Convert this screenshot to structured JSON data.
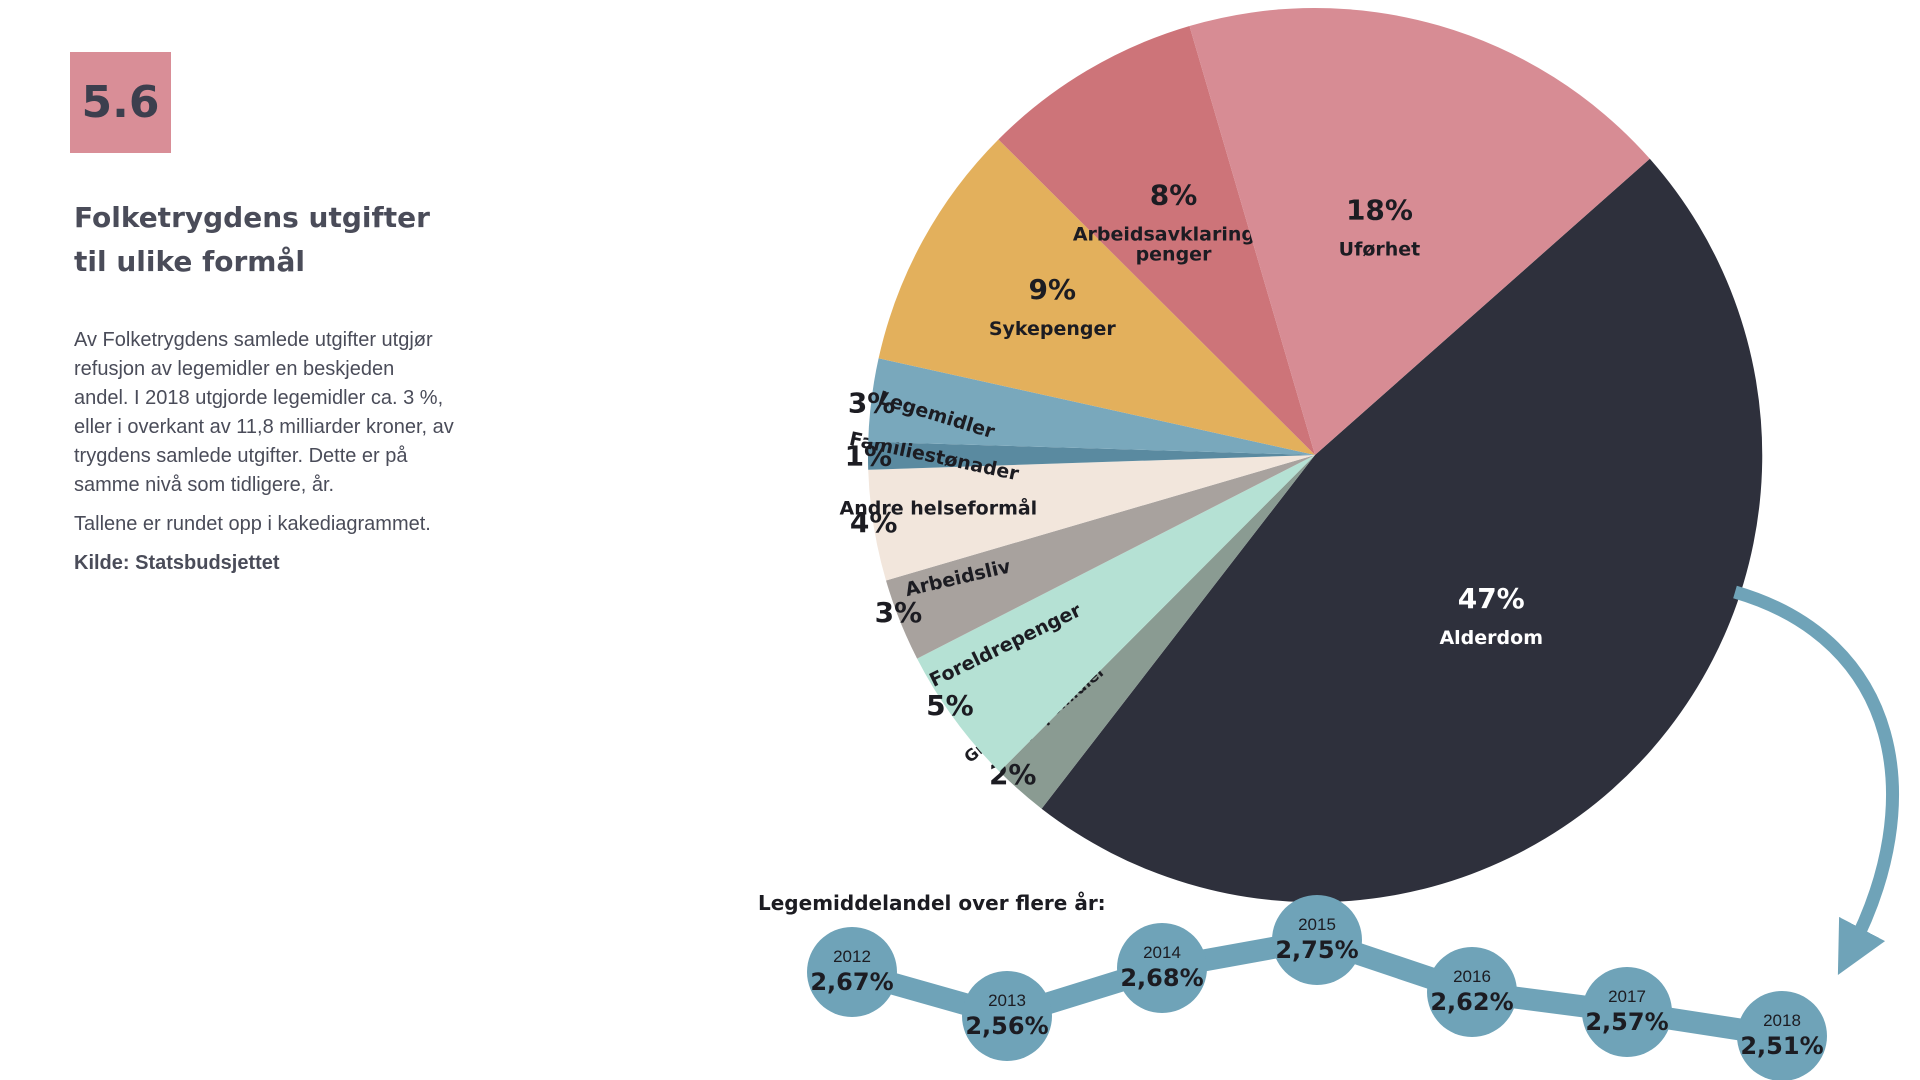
{
  "header": {
    "badge": "5.6",
    "title_lines": [
      "Folketrygdens utgifter",
      "til ulike formål"
    ]
  },
  "body": {
    "paragraph": "Av Folketrygdens samlede utgifter utgjør refusjon av legemidler en beskjeden andel. I 2018 utgjorde legemidler ca. 3 %, eller i overkant av 11,8 milliarder kroner, av trygdens samlede utgifter. Dette er på samme nivå som tidligere, år.",
    "note": "Tallene er rundet opp i kakediagrammet.",
    "source": "Kilde: Statsbudsjettet"
  },
  "chart_data": [
    {
      "type": "pie",
      "slices": [
        {
          "label": "Alderdom",
          "display_value": "47%",
          "value": 47,
          "color": "#2e303c",
          "text_color": "#ffffff"
        },
        {
          "label": "Grunn og hjelpestønad, hjelpemidler",
          "label_lines": [
            "Grunn og hjelpestønad,",
            "hjelpemidler"
          ],
          "display_value": "2%",
          "value": 2,
          "color": "#8a9b92",
          "text_color": "#1c1c22"
        },
        {
          "label": "Foreldrepenger",
          "display_value": "5%",
          "value": 5,
          "color": "#b5e1d4",
          "text_color": "#1c1c22"
        },
        {
          "label": "Arbeidsliv",
          "display_value": "3%",
          "value": 3,
          "color": "#a8a29e",
          "text_color": "#1c1c22"
        },
        {
          "label": "Andre helseformål",
          "display_value": "4%",
          "value": 4,
          "color": "#f2e6dc",
          "text_color": "#1c1c22"
        },
        {
          "label": "Familiestønader",
          "display_value": "1%",
          "value": 1,
          "color": "#5a8aa0",
          "text_color": "#1c1c22"
        },
        {
          "label": "Legemidler",
          "display_value": "3%",
          "value": 3,
          "color": "#79a8bc",
          "text_color": "#1c1c22"
        },
        {
          "label": "Sykepenger",
          "display_value": "9%",
          "value": 9,
          "color": "#e3b05c",
          "text_color": "#1c1c22"
        },
        {
          "label": "Arbeidsavklaringspenger",
          "label_lines": [
            "Arbeidsavklarings-",
            "penger"
          ],
          "display_value": "8%",
          "value": 8,
          "color": "#cd7479",
          "text_color": "#1c1c22"
        },
        {
          "label": "Uførhet",
          "display_value": "18%",
          "value": 18,
          "color": "#d78c94",
          "text_color": "#1c1c22"
        }
      ]
    },
    {
      "type": "line",
      "title": "Legemiddelandel over flere år:",
      "x": [
        "2012",
        "2013",
        "2014",
        "2015",
        "2016",
        "2017",
        "2018"
      ],
      "values": [
        2.67,
        2.56,
        2.68,
        2.75,
        2.62,
        2.57,
        2.51
      ],
      "value_labels": [
        "2,67%",
        "2,56%",
        "2,68%",
        "2,75%",
        "2,62%",
        "2,57%",
        "2,51%"
      ],
      "color": "#6fa3b8"
    }
  ]
}
